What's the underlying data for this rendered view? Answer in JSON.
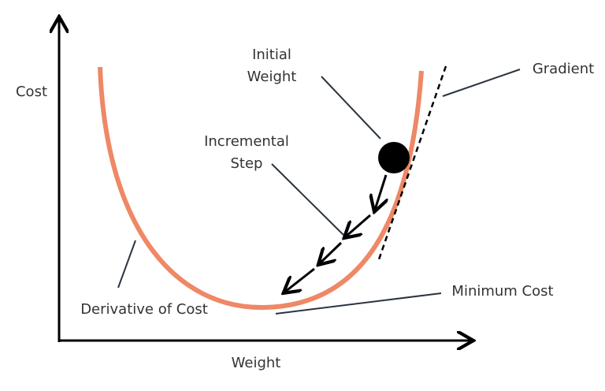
{
  "axes": {
    "y_label": "Cost",
    "x_label": "Weight"
  },
  "labels": {
    "initial_weight": [
      "Initial",
      "Weight"
    ],
    "incremental_step": [
      "Incremental",
      "Step"
    ],
    "gradient": "Gradient",
    "minimum_cost": "Minimum Cost",
    "derivative_of_cost": "Derivative of Cost"
  }
}
